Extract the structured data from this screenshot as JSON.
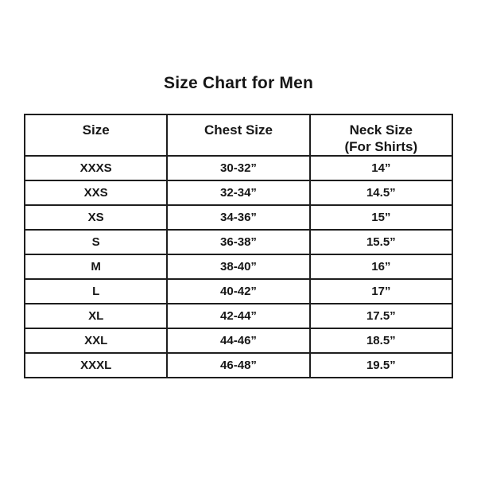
{
  "title": "Size Chart for Men",
  "colors": {
    "background": "#ffffff",
    "text": "#161616",
    "table_border": "#1e1e1e"
  },
  "table": {
    "headers": {
      "size": "Size",
      "chest": "Chest Size",
      "neck_line1": "Neck Size",
      "neck_line2": "(For Shirts)"
    },
    "rows": [
      {
        "size": "XXXS",
        "chest": "30-32”",
        "neck": "14”"
      },
      {
        "size": "XXS",
        "chest": "32-34”",
        "neck": "14.5”"
      },
      {
        "size": "XS",
        "chest": "34-36”",
        "neck": "15”"
      },
      {
        "size": "S",
        "chest": "36-38”",
        "neck": "15.5”"
      },
      {
        "size": "M",
        "chest": "38-40”",
        "neck": "16”"
      },
      {
        "size": "L",
        "chest": "40-42”",
        "neck": "17”"
      },
      {
        "size": "XL",
        "chest": "42-44”",
        "neck": "17.5”"
      },
      {
        "size": "XXL",
        "chest": "44-46”",
        "neck": "18.5”"
      },
      {
        "size": "XXXL",
        "chest": "46-48”",
        "neck": "19.5”"
      }
    ]
  }
}
